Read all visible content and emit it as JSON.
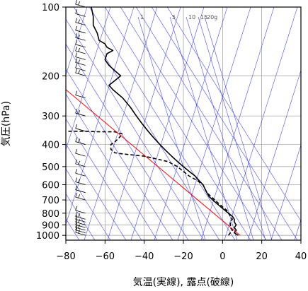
{
  "chart_data": {
    "type": "line",
    "title": "",
    "xlabel": "気温(実線), 露点(破線)",
    "ylabel": "気圧(hPa)",
    "xlim": [
      -80,
      40
    ],
    "ylim": [
      1050,
      100
    ],
    "y_scale": "log",
    "grid": true,
    "x_ticks": [
      -80,
      -60,
      -40,
      -20,
      0,
      20,
      40
    ],
    "x_tick_labels": [
      "−80",
      "−60",
      "−40",
      "−20",
      "0",
      "20",
      "40"
    ],
    "y_ticks": [
      100,
      200,
      300,
      400,
      500,
      600,
      700,
      800,
      900,
      1000
    ],
    "y_tick_labels": [
      "100",
      "200",
      "300",
      "400",
      "500",
      "600",
      "700",
      "800",
      "900",
      "1000"
    ],
    "mixing_ratio_labels": [
      "1",
      "5",
      "10",
      "15",
      "20g"
    ],
    "mixing_ratio_values": [
      1,
      5,
      10,
      15,
      20
    ],
    "series": [
      {
        "role": "temperature",
        "style": "solid",
        "color": "#000000",
        "points": [
          [
            8,
            1000
          ],
          [
            6,
            975
          ],
          [
            7,
            950
          ],
          [
            6,
            925
          ],
          [
            7,
            900
          ],
          [
            6,
            875
          ],
          [
            6,
            850
          ],
          [
            5,
            825
          ],
          [
            3,
            800
          ],
          [
            1,
            775
          ],
          [
            -1,
            750
          ],
          [
            -3,
            725
          ],
          [
            -5,
            700
          ],
          [
            -7,
            675
          ],
          [
            -8,
            650
          ],
          [
            -9,
            625
          ],
          [
            -10,
            600
          ],
          [
            -12,
            575
          ],
          [
            -14,
            550
          ],
          [
            -17,
            525
          ],
          [
            -20,
            500
          ],
          [
            -23,
            475
          ],
          [
            -26,
            450
          ],
          [
            -29,
            425
          ],
          [
            -32,
            400
          ],
          [
            -35,
            375
          ],
          [
            -38,
            350
          ],
          [
            -41,
            325
          ],
          [
            -44,
            300
          ],
          [
            -47,
            275
          ],
          [
            -51,
            250
          ],
          [
            -56,
            230
          ],
          [
            -58,
            220
          ],
          [
            -55,
            210
          ],
          [
            -52,
            200
          ],
          [
            -55,
            190
          ],
          [
            -58,
            180
          ],
          [
            -60,
            170
          ],
          [
            -59,
            160
          ],
          [
            -56,
            155
          ],
          [
            -59,
            150
          ],
          [
            -60,
            145
          ],
          [
            -63,
            140
          ],
          [
            -64,
            130
          ],
          [
            -66,
            120
          ],
          [
            -66,
            110
          ],
          [
            -67,
            100
          ]
        ]
      },
      {
        "role": "dewpoint",
        "style": "dashed",
        "color": "#000000",
        "points": [
          [
            3,
            1000
          ],
          [
            4,
            975
          ],
          [
            5,
            950
          ],
          [
            4,
            925
          ],
          [
            4,
            900
          ],
          [
            4,
            875
          ],
          [
            5,
            850
          ],
          [
            4,
            825
          ],
          [
            3,
            800
          ],
          [
            2,
            775
          ],
          [
            0,
            750
          ],
          [
            -4,
            700
          ],
          [
            -6,
            675
          ],
          [
            -8,
            650
          ],
          [
            -9,
            625
          ],
          [
            -10,
            600
          ],
          [
            -13,
            575
          ],
          [
            -17,
            550
          ],
          [
            -20,
            525
          ],
          [
            -23,
            500
          ],
          [
            -28,
            475
          ],
          [
            -35,
            460
          ],
          [
            -40,
            450
          ],
          [
            -51,
            440
          ],
          [
            -55,
            435
          ],
          [
            -57,
            420
          ],
          [
            -57,
            400
          ],
          [
            -55,
            390
          ],
          [
            -53,
            375
          ],
          [
            -51,
            360
          ],
          [
            -55,
            352
          ],
          [
            -62,
            352
          ],
          [
            -72,
            350
          ],
          [
            -80,
            350
          ]
        ]
      },
      {
        "role": "reference-line",
        "style": "solid",
        "color": "#ff0000",
        "points": [
          [
            9,
            1000
          ],
          [
            -80,
            230
          ]
        ]
      }
    ],
    "wind_barbs": [
      1000,
      975,
      950,
      925,
      900,
      875,
      850,
      800,
      700,
      650,
      600,
      550,
      500,
      450,
      400,
      350,
      300,
      250,
      200,
      190,
      180,
      170,
      160,
      150,
      140,
      130,
      120,
      110,
      100
    ]
  }
}
